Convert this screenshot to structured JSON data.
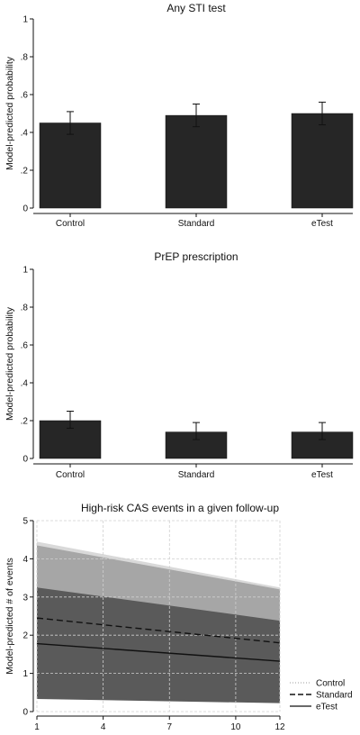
{
  "chart_data": [
    {
      "type": "bar",
      "title": "Any STI test",
      "ylabel": "Model-predicted probability",
      "xlabel": "",
      "categories": [
        "Control",
        "Standard",
        "eTest"
      ],
      "values": [
        0.45,
        0.49,
        0.5
      ],
      "ci_low": [
        0.39,
        0.43,
        0.44
      ],
      "ci_high": [
        0.51,
        0.55,
        0.56
      ],
      "ylim": [
        0,
        1
      ],
      "yticks": [
        0,
        0.2,
        0.4,
        0.6,
        0.8,
        1
      ],
      "ytick_labels": [
        "0",
        ".2",
        ".4",
        ".6",
        ".8",
        "1"
      ],
      "bar_color": "#262626",
      "grid": false
    },
    {
      "type": "bar",
      "title": "PrEP prescription",
      "ylabel": "Model-predicted probability",
      "xlabel": "",
      "categories": [
        "Control",
        "Standard",
        "eTest"
      ],
      "values": [
        0.2,
        0.14,
        0.14
      ],
      "ci_low": [
        0.16,
        0.1,
        0.1
      ],
      "ci_high": [
        0.25,
        0.19,
        0.19
      ],
      "ylim": [
        0,
        1
      ],
      "yticks": [
        0,
        0.2,
        0.4,
        0.6,
        0.8,
        1
      ],
      "ytick_labels": [
        "0",
        ".2",
        ".4",
        ".6",
        ".8",
        "1"
      ],
      "bar_color": "#262626",
      "grid": false
    },
    {
      "type": "line",
      "title": "High-risk CAS events in a given follow-up",
      "ylabel": "Model-predicted # of events",
      "xlabel": "",
      "xlim": [
        1,
        12
      ],
      "ylim": [
        0,
        5
      ],
      "xticks": [
        1,
        4,
        7,
        10,
        12
      ],
      "yticks": [
        0,
        1,
        2,
        3,
        4,
        5
      ],
      "grid": true,
      "legend": "right",
      "x": [
        1,
        12
      ],
      "series": [
        {
          "name": "Control",
          "style": "dotted",
          "color": "#b0b0b0",
          "values": [
            null,
            null
          ],
          "band_low": [
            0.45,
            0.33
          ],
          "band_high": [
            4.45,
            3.25
          ],
          "band_color": "#d9d9d9"
        },
        {
          "name": "Standard",
          "style": "dashed",
          "color": "#111111",
          "values": [
            2.45,
            1.8
          ],
          "band_low": [
            0.4,
            0.28
          ],
          "band_high": [
            4.35,
            3.2
          ],
          "band_color": "#a6a6a6"
        },
        {
          "name": "eTest",
          "style": "solid",
          "color": "#111111",
          "values": [
            1.78,
            1.32
          ],
          "band_low": [
            0.33,
            0.22
          ],
          "band_high": [
            3.25,
            2.38
          ],
          "band_color": "#5a5a5a"
        }
      ]
    }
  ]
}
